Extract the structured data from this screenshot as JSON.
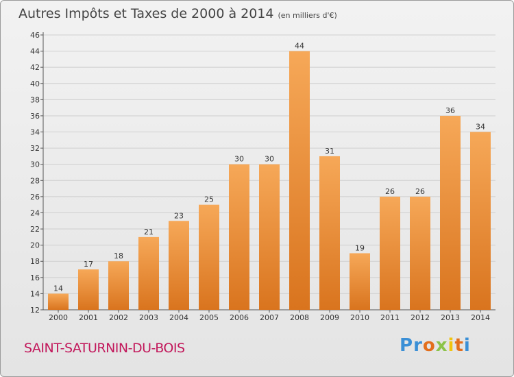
{
  "header": {
    "title": "Autres Impôts et Taxes de 2000 à 2014",
    "unit": "(en milliers d'€)"
  },
  "footer": {
    "commune": "SAINT-SATURNIN-DU-BOIS",
    "logo": "Proxiti"
  },
  "colors": {
    "bar_light": "#f6a858",
    "bar_dark": "#d9741e",
    "grid": "#cfcfcf",
    "commune": "#c2185b"
  },
  "chart_data": {
    "type": "bar",
    "title": "Autres Impôts et Taxes de 2000 à 2014",
    "subtitle": "(en milliers d'€)",
    "xlabel": "",
    "ylabel": "",
    "categories": [
      "2000",
      "2001",
      "2002",
      "2003",
      "2004",
      "2005",
      "2006",
      "2007",
      "2008",
      "2009",
      "2010",
      "2011",
      "2012",
      "2013",
      "2014"
    ],
    "values": [
      14,
      17,
      18,
      21,
      23,
      25,
      30,
      30,
      44,
      31,
      19,
      26,
      26,
      36,
      34
    ],
    "ylim": [
      12,
      46
    ],
    "yticks": [
      12,
      14,
      16,
      18,
      20,
      22,
      24,
      26,
      28,
      30,
      32,
      34,
      36,
      38,
      40,
      42,
      44,
      46
    ],
    "grid": true,
    "legend": "none"
  }
}
